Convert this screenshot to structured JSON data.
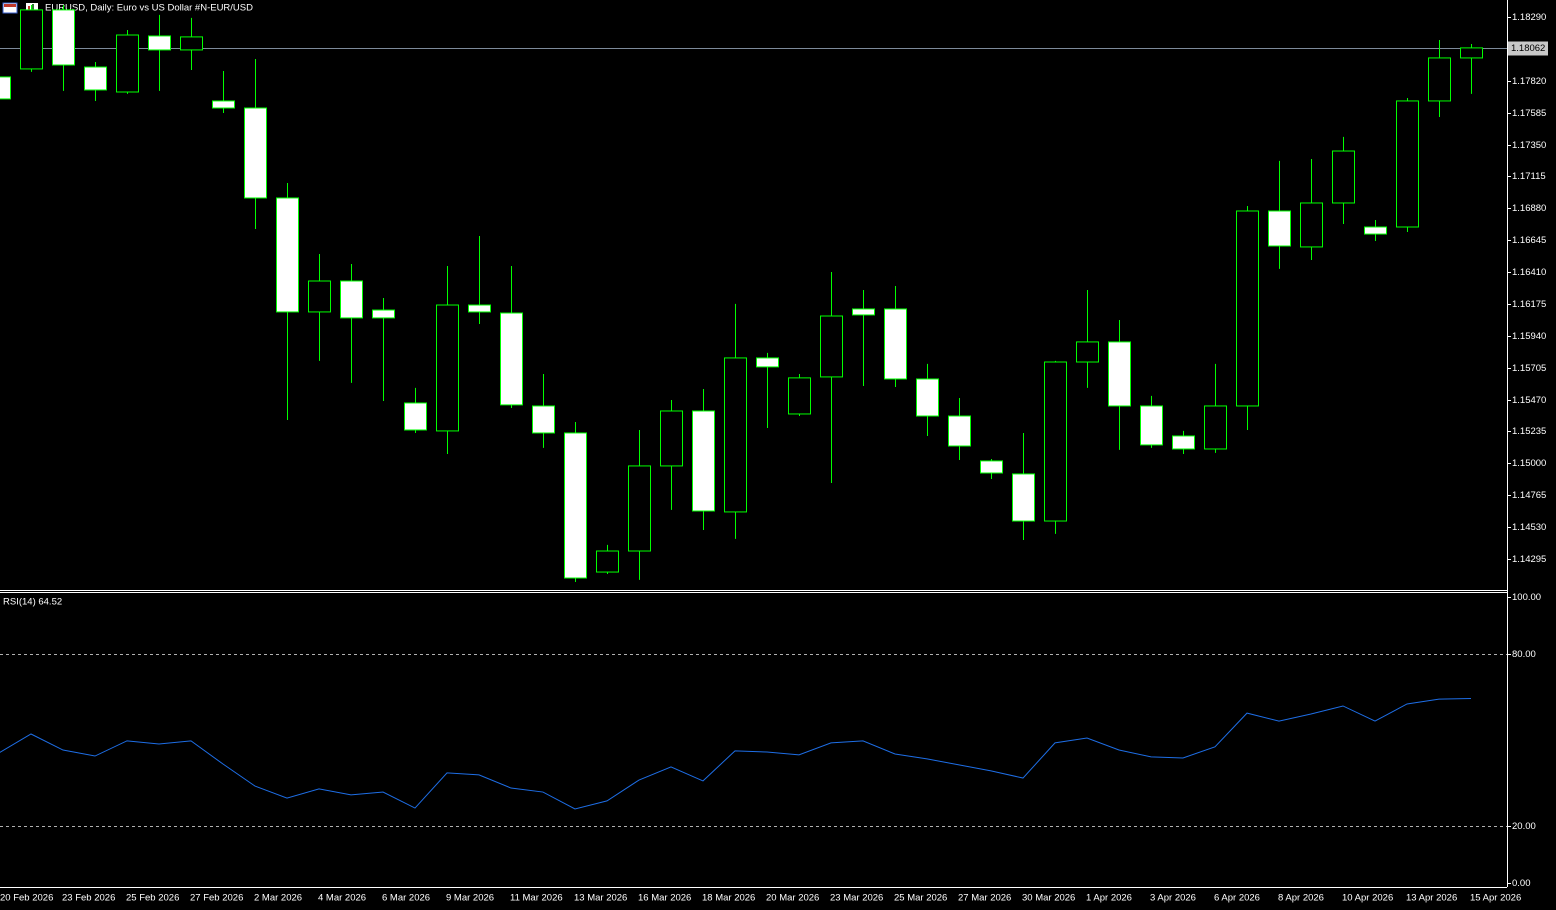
{
  "header": {
    "title": "EURUSD, Daily:  Euro vs US Dollar #N-EUR/USD"
  },
  "chart_data": [
    {
      "type": "candlestick",
      "categories": [
        "20 Feb 2026",
        null,
        "23 Feb 2026",
        null,
        "25 Feb 2026",
        null,
        "27 Feb 2026",
        null,
        "2 Mar 2026",
        null,
        "4 Mar 2026",
        null,
        "6 Mar 2026",
        null,
        "9 Mar 2026",
        null,
        "11 Mar 2026",
        null,
        "13 Mar 2026",
        null,
        "16 Mar 2026",
        null,
        "18 Mar 2026",
        null,
        "20 Mar 2026",
        null,
        "23 Mar 2026",
        null,
        "25 Mar 2026",
        null,
        "27 Mar 2026",
        null,
        "30 Mar 2026",
        null,
        "1 Apr 2026",
        null,
        "3 Apr 2026",
        null,
        "6 Apr 2026",
        null,
        "8 Apr 2026",
        null,
        "10 Apr 2026",
        null,
        "13 Apr 2026",
        null,
        "15 Apr 2026"
      ],
      "open": [
        1.17848,
        1.17907,
        1.18342,
        1.17921,
        1.17737,
        1.1815,
        1.18047,
        1.17671,
        1.17619,
        1.16956,
        1.16116,
        1.16344,
        1.1613,
        1.15445,
        1.15239,
        1.16167,
        1.16108,
        1.15423,
        1.15224,
        1.14199,
        1.14354,
        1.14981,
        1.15386,
        1.14642,
        1.15777,
        1.15364,
        1.15637,
        1.16138,
        1.16138,
        1.15622,
        1.15349,
        1.15018,
        1.14922,
        1.14575,
        1.15747,
        1.15895,
        1.15423,
        1.15202,
        1.15106,
        1.15423,
        1.1686,
        1.16595,
        1.16919,
        1.16742,
        1.16742,
        1.17671,
        1.17988
      ],
      "high": [
        1.17899,
        1.18378,
        1.18378,
        1.17958,
        1.18194,
        1.18305,
        1.18283,
        1.17892,
        1.1798,
        1.17066,
        1.16543,
        1.16469,
        1.16219,
        1.15556,
        1.16455,
        1.16676,
        1.16455,
        1.15659,
        1.15305,
        1.14399,
        1.15246,
        1.15467,
        1.15548,
        1.16175,
        1.15814,
        1.15659,
        1.1641,
        1.16278,
        1.16307,
        1.15733,
        1.15482,
        1.15032,
        1.15224,
        1.15755,
        1.16278,
        1.16057,
        1.15497,
        1.15239,
        1.15733,
        1.16897,
        1.17229,
        1.17243,
        1.17406,
        1.16794,
        1.17693,
        1.1812,
        1.18091
      ],
      "low": [
        1.17642,
        1.17885,
        1.17745,
        1.17671,
        1.17723,
        1.17745,
        1.17899,
        1.17582,
        1.16727,
        1.1532,
        1.15755,
        1.15593,
        1.1546,
        1.15224,
        1.15069,
        1.16027,
        1.15408,
        1.15114,
        1.14126,
        1.14185,
        1.14141,
        1.14657,
        1.14509,
        1.14443,
        1.15261,
        1.15349,
        1.14855,
        1.1557,
        1.15563,
        1.15202,
        1.15025,
        1.14885,
        1.14435,
        1.1448,
        1.15556,
        1.15099,
        1.15114,
        1.15069,
        1.15077,
        1.15246,
        1.16433,
        1.16499,
        1.16764,
        1.16639,
        1.16705,
        1.17553,
        1.17723
      ],
      "close": [
        1.17686,
        1.18342,
        1.17936,
        1.17752,
        1.18157,
        1.18047,
        1.18143,
        1.17619,
        1.16956,
        1.16116,
        1.16344,
        1.16072,
        1.16072,
        1.15246,
        1.16167,
        1.16116,
        1.15431,
        1.15224,
        1.14155,
        1.14354,
        1.14981,
        1.15386,
        1.14649,
        1.15777,
        1.15711,
        1.1563,
        1.16086,
        1.16094,
        1.15622,
        1.15349,
        1.15128,
        1.14929,
        1.14575,
        1.15747,
        1.15895,
        1.15423,
        1.15136,
        1.15106,
        1.15423,
        1.1686,
        1.16602,
        1.16919,
        1.17302,
        1.1669,
        1.17671,
        1.17988,
        1.18062
      ],
      "wick_color": "#00ff00",
      "border_color": "#00ff00",
      "bull_fill": "#000000",
      "bear_fill": "#ffffff",
      "ylim": [
        1.14074,
        1.18415
      ],
      "yticks": [
        {
          "value": 1.1829,
          "label": "1.18290"
        },
        {
          "value": 1.1782,
          "label": "1.17820"
        },
        {
          "value": 1.17585,
          "label": "1.17585"
        },
        {
          "value": 1.1735,
          "label": "1.17350"
        },
        {
          "value": 1.17115,
          "label": "1.17115"
        },
        {
          "value": 1.1688,
          "label": "1.16880"
        },
        {
          "value": 1.16645,
          "label": "1.16645"
        },
        {
          "value": 1.1641,
          "label": "1.16410"
        },
        {
          "value": 1.16175,
          "label": "1.16175"
        },
        {
          "value": 1.1594,
          "label": "1.15940"
        },
        {
          "value": 1.15705,
          "label": "1.15705"
        },
        {
          "value": 1.1547,
          "label": "1.15470"
        },
        {
          "value": 1.15235,
          "label": "1.15235"
        },
        {
          "value": 1.15,
          "label": "1.15000"
        },
        {
          "value": 1.14765,
          "label": "1.14765"
        },
        {
          "value": 1.1453,
          "label": "1.14530"
        },
        {
          "value": 1.14295,
          "label": "1.14295"
        }
      ],
      "price_line": {
        "value": 1.18062,
        "label": "1.18062"
      }
    },
    {
      "type": "line",
      "title": "RSI(14) 64.52",
      "color": "#1e6ee6",
      "values": [
        45.5,
        52.1,
        46.5,
        44.4,
        49.7,
        48.6,
        49.7,
        41.6,
        33.9,
        29.7,
        32.9,
        30.8,
        31.8,
        26.2,
        38.5,
        37.8,
        33.2,
        31.8,
        25.9,
        28.7,
        36.0,
        40.6,
        35.7,
        46.2,
        45.8,
        44.8,
        49.0,
        49.7,
        45.1,
        43.4,
        41.3,
        39.2,
        36.7,
        49.0,
        50.7,
        46.5,
        44.1,
        43.7,
        47.6,
        59.4,
        56.6,
        59.1,
        61.9,
        56.6,
        62.6,
        64.3,
        64.52
      ],
      "ylim": [
        0,
        100
      ],
      "yticks": [
        {
          "value": 100,
          "label": "100.00"
        },
        {
          "value": 80,
          "label": "80.00"
        },
        {
          "value": 20,
          "label": "20.00"
        },
        {
          "value": 0,
          "label": "0.00"
        }
      ],
      "levels": [
        80,
        20
      ]
    }
  ]
}
